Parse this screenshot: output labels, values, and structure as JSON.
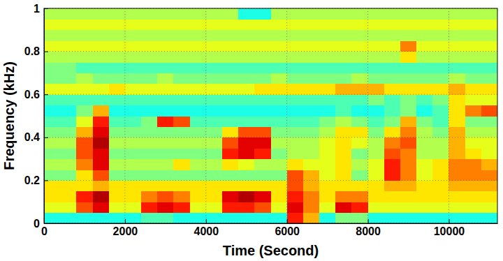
{
  "chart_data": {
    "type": "heatmap",
    "xlabel": "Time (Second)",
    "ylabel": "Frequency (kHz)",
    "xlim": [
      0,
      11200
    ],
    "ylim": [
      0,
      1
    ],
    "xticks": [
      0,
      2000,
      4000,
      6000,
      8000,
      10000
    ],
    "yticks": [
      0,
      0.2,
      0.4,
      0.6,
      0.8,
      1
    ],
    "grid": true,
    "zlim": [
      0,
      10
    ],
    "x_edges": [
      0,
      400,
      800,
      1200,
      1600,
      2000,
      2400,
      2800,
      3200,
      3600,
      4000,
      4400,
      4800,
      5200,
      5600,
      6000,
      6400,
      6800,
      7200,
      7600,
      8000,
      8400,
      8800,
      9200,
      9600,
      10000,
      10400,
      10800,
      11200
    ],
    "y_edges": [
      0,
      0.05,
      0.1,
      0.15,
      0.2,
      0.25,
      0.3,
      0.35,
      0.4,
      0.45,
      0.5,
      0.55,
      0.6,
      0.65,
      0.7,
      0.75,
      0.8,
      0.85,
      0.9,
      0.95,
      1
    ],
    "cells": [
      [
        4,
        4,
        4,
        4,
        4,
        4,
        4.5,
        4.5,
        4,
        4,
        4,
        4,
        4,
        4,
        4,
        8.5,
        7,
        4,
        5,
        5,
        4,
        4,
        4,
        4,
        4,
        4,
        4,
        4
      ],
      [
        6,
        6,
        8,
        9,
        6,
        6,
        8.5,
        9,
        8.5,
        6,
        6,
        8.5,
        8.5,
        8,
        6,
        9,
        7.5,
        6,
        9,
        8.5,
        6,
        6,
        6,
        6,
        6,
        6,
        6,
        6
      ],
      [
        6.5,
        6.5,
        8.5,
        9.5,
        6.5,
        6.5,
        7.5,
        8,
        7.5,
        6.5,
        6.5,
        9,
        9.5,
        9,
        6.5,
        8.5,
        7.5,
        6.5,
        7.5,
        7.5,
        6.5,
        6.5,
        6.5,
        6.5,
        6.5,
        6.5,
        6.5,
        6.5
      ],
      [
        6.5,
        6.5,
        6.5,
        7,
        6.5,
        6.5,
        6.5,
        6.5,
        6.5,
        6.5,
        6.5,
        6.5,
        6.5,
        6.5,
        6.5,
        8,
        7,
        6.5,
        6.5,
        6.5,
        6.5,
        7,
        7,
        6.5,
        6.5,
        7,
        7,
        7
      ],
      [
        5,
        5,
        6.5,
        8,
        5,
        5,
        5,
        5,
        5,
        5,
        5,
        5,
        5,
        5,
        5,
        8,
        7,
        6,
        6.5,
        5,
        6,
        8.5,
        7.5,
        6,
        6.5,
        7.5,
        7.5,
        7.5
      ],
      [
        5.5,
        5.5,
        7.5,
        9,
        5.5,
        5.5,
        5.5,
        5.5,
        6.5,
        5.5,
        5.5,
        6.5,
        6,
        5.5,
        5.5,
        6.5,
        6,
        6,
        6.5,
        5.5,
        6,
        8.5,
        7.5,
        6,
        6.5,
        7.5,
        7.5,
        7
      ],
      [
        5,
        5,
        8,
        9,
        5,
        5,
        5,
        5,
        5,
        5,
        5,
        8.5,
        9,
        8.5,
        5,
        5.5,
        5.5,
        6,
        6.5,
        5,
        5.5,
        8,
        7.5,
        5.5,
        5.5,
        7,
        6.5,
        6
      ],
      [
        5.5,
        5.5,
        8,
        9.5,
        5.5,
        5.5,
        5.5,
        5.5,
        5.5,
        5.5,
        5.5,
        8,
        9,
        9,
        5.5,
        5.5,
        5.5,
        6,
        6.5,
        6,
        5.5,
        7.5,
        8,
        5.5,
        5.5,
        7,
        6,
        6
      ],
      [
        5,
        5,
        7,
        9,
        5,
        5,
        5,
        5,
        5,
        5,
        5,
        6.5,
        8,
        8,
        5,
        5,
        5,
        5.5,
        6.5,
        6.5,
        5,
        6.5,
        7.5,
        5.5,
        5,
        7,
        5.5,
        5.5
      ],
      [
        4.5,
        4.5,
        6,
        8.5,
        4.5,
        4.5,
        5,
        8.5,
        8,
        4.5,
        4.5,
        4.5,
        4.5,
        4.5,
        4.5,
        4.5,
        4.5,
        5,
        5.5,
        5,
        4.5,
        5,
        7,
        5,
        4.5,
        6.5,
        5,
        5
      ],
      [
        4,
        4,
        5,
        7,
        4,
        4,
        4,
        4,
        4,
        4,
        4,
        4,
        4,
        4,
        4,
        4,
        4,
        4,
        4.5,
        4,
        4,
        4.5,
        5,
        4,
        4.5,
        6.5,
        7.5,
        8
      ],
      [
        4.5,
        4.5,
        4.5,
        4.5,
        4.5,
        4.5,
        4.5,
        4.5,
        4.5,
        4.5,
        4.5,
        4.5,
        4.5,
        4.5,
        4.5,
        4.5,
        4.5,
        4.5,
        4.5,
        4.5,
        5,
        4.5,
        5,
        4.5,
        5,
        6.5,
        6,
        6
      ],
      [
        6,
        6,
        6,
        6,
        6.5,
        6,
        6,
        6,
        6,
        6,
        6,
        6,
        6,
        6.5,
        6.5,
        6.5,
        6.5,
        6.5,
        7,
        7,
        7,
        6.5,
        6.5,
        6.5,
        6.5,
        7,
        6.5,
        6.5
      ],
      [
        5,
        5,
        5.5,
        5,
        5,
        5,
        5,
        5.5,
        5,
        5,
        5,
        5,
        5,
        5,
        5.5,
        5,
        5,
        5,
        5,
        5.5,
        5,
        5,
        5,
        5,
        5,
        5.5,
        5,
        5
      ],
      [
        5,
        5,
        4.5,
        4.5,
        4.5,
        4.5,
        4.5,
        4.5,
        4.5,
        4.5,
        4.5,
        4.5,
        4.5,
        4.5,
        4.5,
        4.5,
        4.5,
        4.5,
        4.5,
        4.5,
        4.5,
        4.5,
        4.5,
        4.5,
        4.5,
        4.5,
        4.5,
        4.5
      ],
      [
        5.5,
        5.5,
        5.5,
        5.5,
        5.5,
        5.5,
        5.5,
        5.5,
        5.5,
        5.5,
        5.5,
        5.5,
        5.5,
        5.5,
        5.5,
        5.5,
        5.5,
        5.5,
        5.5,
        5.5,
        5.5,
        5.5,
        6.5,
        5.5,
        5.5,
        5.5,
        5.5,
        5.5
      ],
      [
        6,
        6,
        6,
        6,
        6,
        6,
        6,
        6,
        6,
        6,
        6,
        6,
        6,
        6,
        6,
        6,
        6,
        6,
        6,
        6,
        6,
        6,
        7.5,
        6,
        6,
        6,
        6,
        6
      ],
      [
        5.5,
        5.5,
        5.5,
        5.5,
        5.5,
        5.5,
        5.5,
        5.5,
        5.5,
        5.5,
        5.5,
        5.5,
        5.5,
        5.5,
        5.5,
        5.5,
        5.5,
        5.5,
        5.5,
        5.5,
        5.5,
        5.5,
        5.5,
        5.5,
        5.5,
        5.5,
        5.5,
        5.5
      ],
      [
        6,
        6,
        6,
        6,
        6,
        6,
        6,
        6,
        6,
        6,
        6,
        6,
        6,
        6,
        6,
        6,
        6,
        6,
        6,
        6,
        6,
        6,
        6,
        6,
        6,
        6,
        6,
        6
      ],
      [
        5.5,
        5.5,
        5.5,
        5.5,
        5.5,
        5.5,
        5.5,
        5.5,
        5.5,
        5.5,
        5.5,
        5.5,
        4,
        4,
        5.5,
        5.5,
        5.5,
        5.5,
        5.5,
        5.5,
        5.5,
        5.5,
        5.5,
        5.5,
        5.5,
        5.5,
        5.5,
        5.5
      ]
    ]
  }
}
